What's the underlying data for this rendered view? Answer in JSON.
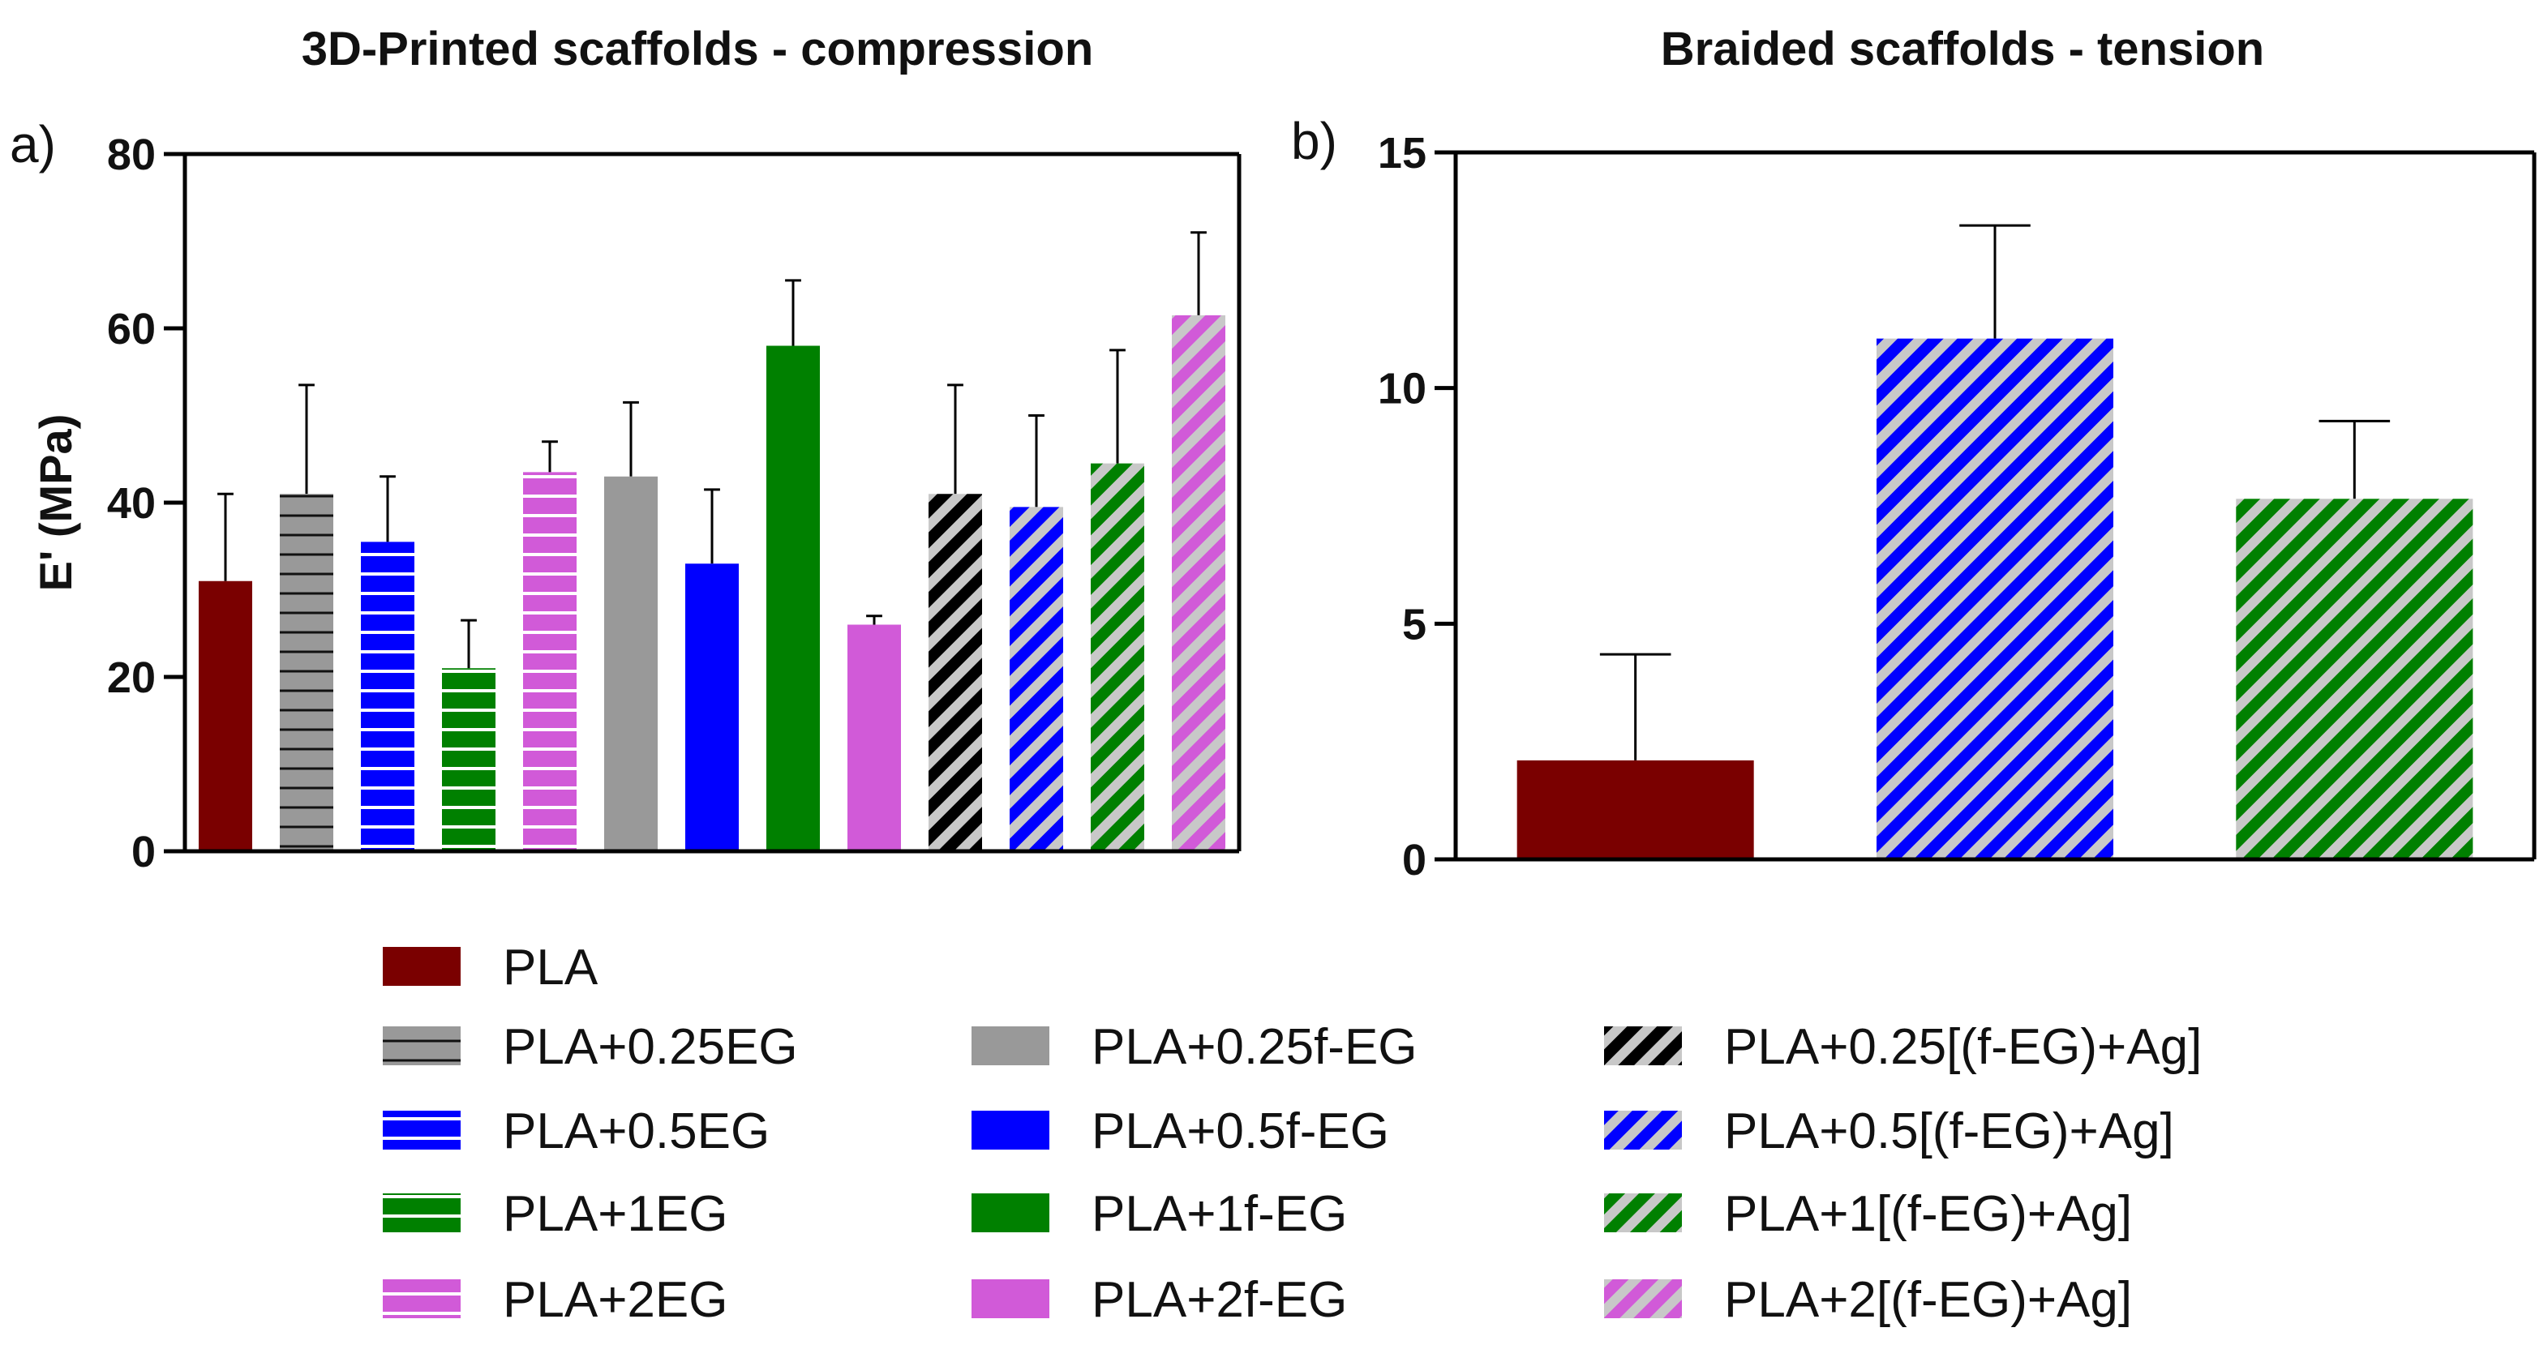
{
  "legend": {
    "items": [
      {
        "label": "PLA",
        "pattern": "solid",
        "color": "#7a0000"
      },
      {
        "label": "PLA+0.25EG",
        "pattern": "hline",
        "color": "#999999"
      },
      {
        "label": "PLA+0.5EG",
        "pattern": "hstripes",
        "color": "#0000ff"
      },
      {
        "label": "PLA+1EG",
        "pattern": "hstripes",
        "color": "#008000"
      },
      {
        "label": "PLA+2EG",
        "pattern": "hstripes",
        "color": "#d15ad8"
      },
      {
        "label": "PLA+0.25f-EG",
        "pattern": "solid",
        "color": "#999999"
      },
      {
        "label": "PLA+0.5f-EG",
        "pattern": "solid",
        "color": "#0000ff"
      },
      {
        "label": "PLA+1f-EG",
        "pattern": "solid",
        "color": "#008000"
      },
      {
        "label": "PLA+2f-EG",
        "pattern": "solid",
        "color": "#d15ad8"
      },
      {
        "label": "PLA+0.25[(f-EG)+Ag]",
        "pattern": "diag",
        "color": "#000000"
      },
      {
        "label": "PLA+0.5[(f-EG)+Ag]",
        "pattern": "diag",
        "color": "#0000ff"
      },
      {
        "label": "PLA+1[(f-EG)+Ag]",
        "pattern": "diag",
        "color": "#008000"
      },
      {
        "label": "PLA+2[(f-EG)+Ag]",
        "pattern": "diag",
        "color": "#d15ad8"
      }
    ]
  },
  "chart_data": [
    {
      "panel": "a)",
      "type": "bar",
      "title": "3D-Printed scaffolds - compression",
      "ylabel": "E' (MPa)",
      "xlabel": "",
      "ylim": [
        0,
        80
      ],
      "yticks": [
        0,
        20,
        40,
        60,
        80
      ],
      "categories": [
        "PLA",
        "PLA+0.25EG",
        "PLA+0.5EG",
        "PLA+1EG",
        "PLA+2EG",
        "PLA+0.25f-EG",
        "PLA+0.5f-EG",
        "PLA+1f-EG",
        "PLA+2f-EG",
        "PLA+0.25[(f-EG)+Ag]",
        "PLA+0.5[(f-EG)+Ag]",
        "PLA+1[(f-EG)+Ag]",
        "PLA+2[(f-EG)+Ag]"
      ],
      "values": [
        31,
        41,
        35.5,
        21,
        43.5,
        43,
        33,
        58,
        26,
        41,
        39.5,
        44.5,
        61.5
      ],
      "errors": [
        10,
        12.5,
        7.5,
        5.5,
        3.5,
        8.5,
        8.5,
        7.5,
        1,
        12.5,
        10.5,
        13,
        9.5
      ],
      "grid": false
    },
    {
      "panel": "b)",
      "type": "bar",
      "title": "Braided scaffolds - tension",
      "ylabel": "",
      "xlabel": "",
      "ylim": [
        0,
        15
      ],
      "yticks": [
        0,
        5,
        10,
        15
      ],
      "categories": [
        "PLA",
        "PLA+0.5[(f-EG)+Ag]",
        "PLA+1[(f-EG)+Ag]"
      ],
      "values": [
        2.1,
        11.05,
        7.65
      ],
      "errors": [
        2.25,
        2.4,
        1.65
      ],
      "grid": false
    }
  ]
}
